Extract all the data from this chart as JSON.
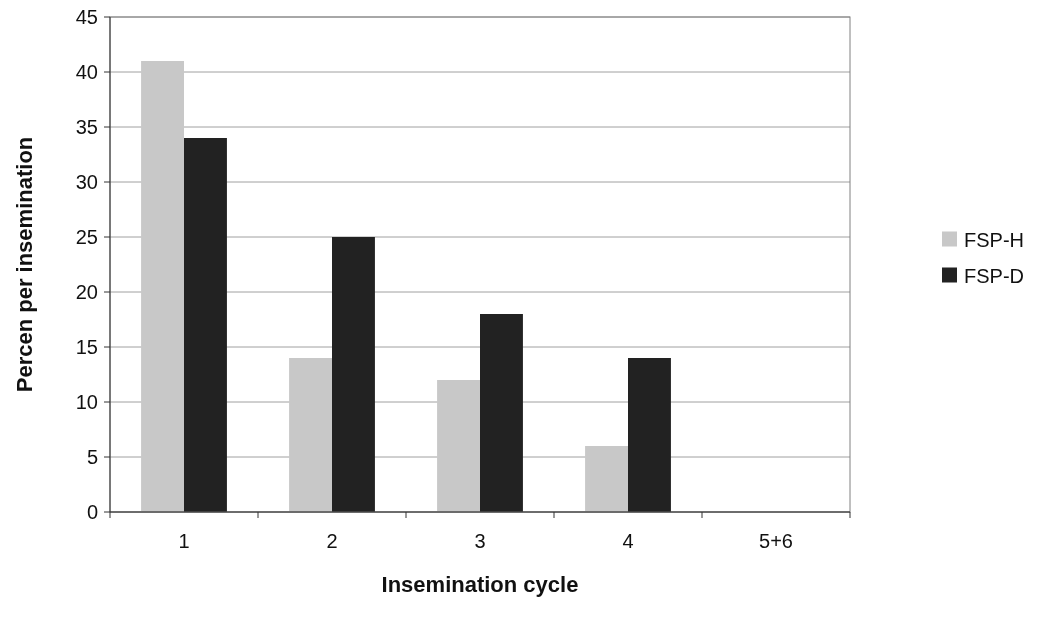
{
  "chart_data": {
    "type": "bar",
    "xlabel": "Insemination cycle",
    "ylabel": "Percen per insemination",
    "categories": [
      "1",
      "2",
      "3",
      "4",
      "5+6"
    ],
    "series": [
      {
        "name": "FSP-H",
        "color": "#c8c8c8",
        "values": [
          41,
          14,
          12,
          6,
          0
        ]
      },
      {
        "name": "FSP-D",
        "color": "#222222",
        "values": [
          34,
          25,
          18,
          14,
          0
        ]
      }
    ],
    "ylim": [
      0,
      45
    ],
    "yticks": [
      0,
      5,
      10,
      15,
      20,
      25,
      30,
      35,
      40,
      45
    ],
    "grid": "y",
    "legend": "right"
  }
}
